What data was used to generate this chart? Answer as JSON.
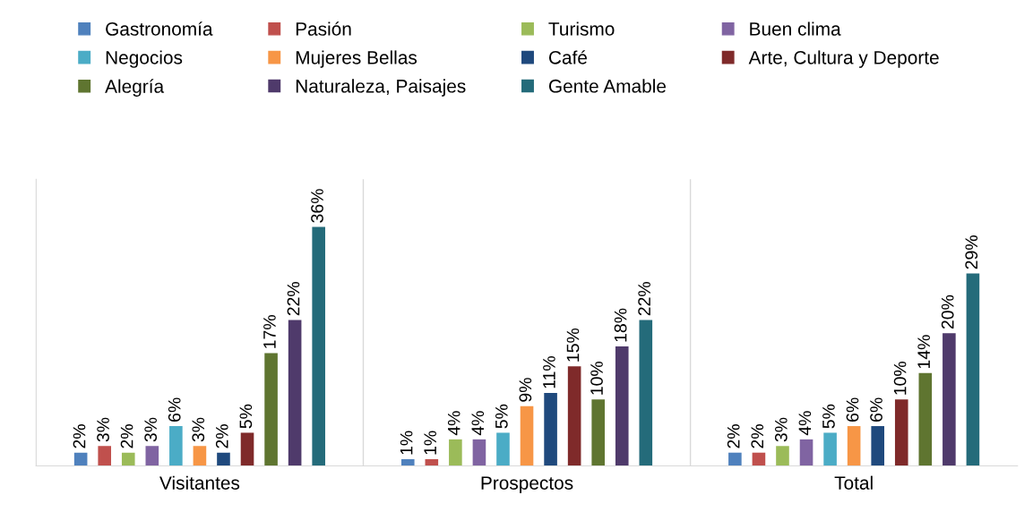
{
  "chart_data": {
    "type": "bar",
    "categories": [
      "Visitantes",
      "Prospectos",
      "Total"
    ],
    "legend": "top",
    "series": [
      {
        "name": "Gastronomía",
        "color": "#4f81bd",
        "values": [
          2,
          1,
          2
        ],
        "value_labels": [
          "2%",
          "1%",
          "2%"
        ]
      },
      {
        "name": "Pasión",
        "color": "#c0504d",
        "values": [
          3,
          1,
          2
        ],
        "value_labels": [
          "3%",
          "1%",
          "2%"
        ]
      },
      {
        "name": "Turismo",
        "color": "#9bbb59",
        "values": [
          2,
          4,
          3
        ],
        "value_labels": [
          "2%",
          "4%",
          "3%"
        ]
      },
      {
        "name": "Buen clima",
        "color": "#8064a2",
        "values": [
          3,
          4,
          4
        ],
        "value_labels": [
          "3%",
          "4%",
          "4%"
        ]
      },
      {
        "name": "Negocios",
        "color": "#4bacc6",
        "values": [
          6,
          5,
          5
        ],
        "value_labels": [
          "6%",
          "5%",
          "5%"
        ]
      },
      {
        "name": "Mujeres Bellas",
        "color": "#f79646",
        "values": [
          3,
          9,
          6
        ],
        "value_labels": [
          "3%",
          "9%",
          "6%"
        ]
      },
      {
        "name": "Café",
        "color": "#1f497d",
        "values": [
          2,
          11,
          6
        ],
        "value_labels": [
          "2%",
          "11%",
          "6%"
        ]
      },
      {
        "name": "Arte, Cultura y Deporte",
        "color": "#7f2a2a",
        "values": [
          5,
          15,
          10
        ],
        "value_labels": [
          "5%",
          "15%",
          "10%"
        ]
      },
      {
        "name": "Alegría",
        "color": "#5f7530",
        "values": [
          17,
          10,
          14
        ],
        "value_labels": [
          "17%",
          "10%",
          "14%"
        ]
      },
      {
        "name": "Naturaleza, Paisajes",
        "color": "#4f3a6b",
        "values": [
          22,
          18,
          20
        ],
        "value_labels": [
          "22%",
          "18%",
          "20%"
        ]
      },
      {
        "name": "Gente Amable",
        "color": "#246b7a",
        "values": [
          36,
          22,
          29
        ],
        "value_labels": [
          "36%",
          "22%",
          "29%"
        ]
      }
    ]
  }
}
